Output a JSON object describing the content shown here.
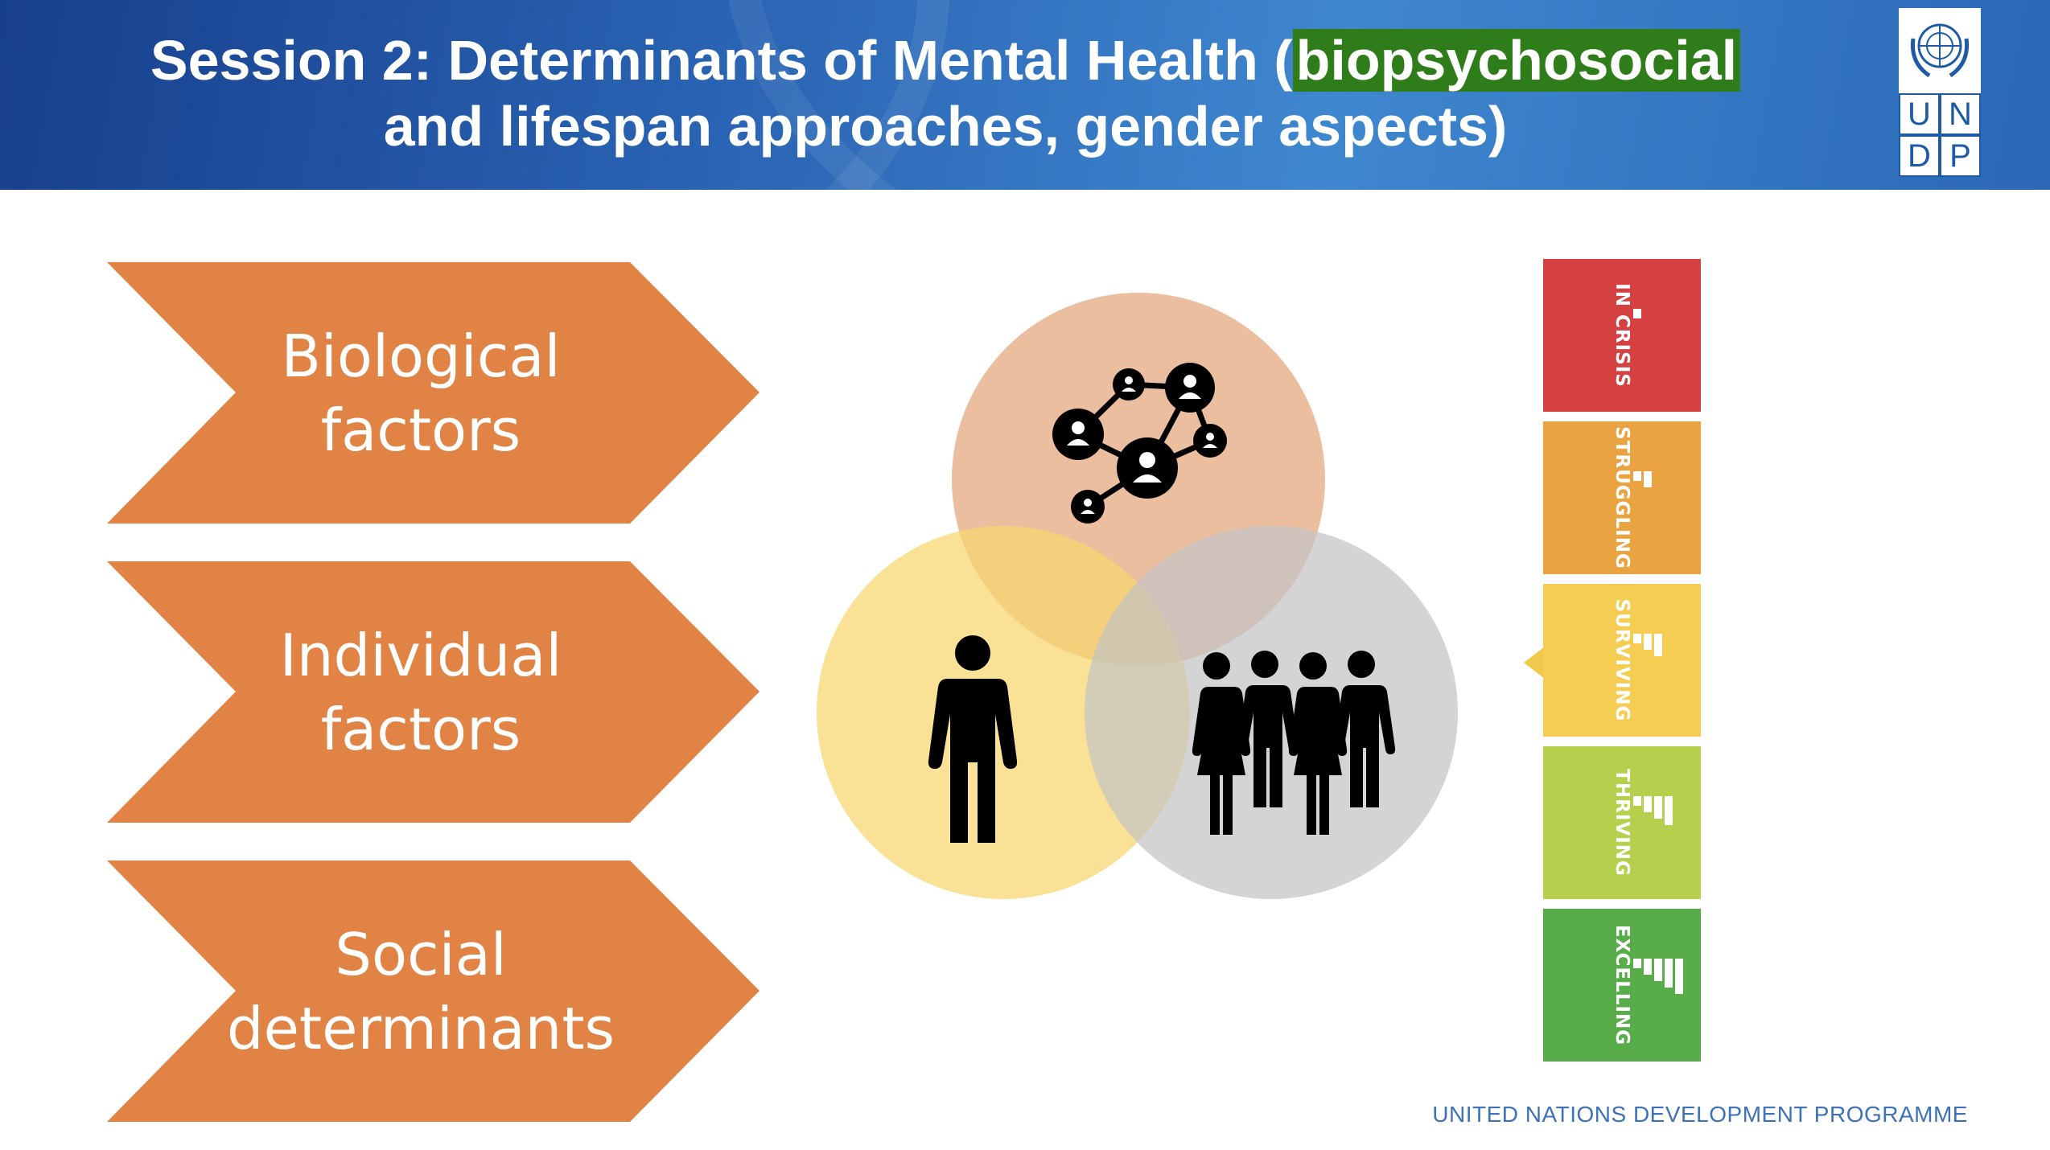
{
  "header": {
    "title_line1_pre": "Session 2: Determinants of Mental Health (",
    "title_line1_highlight": "biopsychosocial",
    "title_line2": "and lifespan approaches, gender aspects)"
  },
  "logo": {
    "emblem_icon": "un-emblem-icon",
    "letters": [
      "U",
      "N",
      "D",
      "P"
    ]
  },
  "factors": [
    {
      "line1": "Biological",
      "line2": "factors"
    },
    {
      "line1": "Individual",
      "line2": "factors"
    },
    {
      "line1": "Social",
      "line2": "determinants"
    }
  ],
  "venn": {
    "circles": [
      {
        "icon": "social-network-icon",
        "color": "#e3a57c"
      },
      {
        "icon": "person-icon",
        "color": "#f6d56e"
      },
      {
        "icon": "group-of-people-icon",
        "color": "#c4c4c4"
      }
    ]
  },
  "scale": {
    "levels": [
      {
        "label": "IN CRISIS",
        "color": "#d54041"
      },
      {
        "label": "STRUGGLING",
        "color": "#e9a340"
      },
      {
        "label": "SURVIVING",
        "color": "#f4cd52"
      },
      {
        "label": "THRIVING",
        "color": "#b4d04c"
      },
      {
        "label": "EXCELLING",
        "color": "#58ad4a"
      }
    ],
    "selected": "SURVIVING"
  },
  "footer": "UNITED NATIONS DEVELOPMENT PROGRAMME"
}
